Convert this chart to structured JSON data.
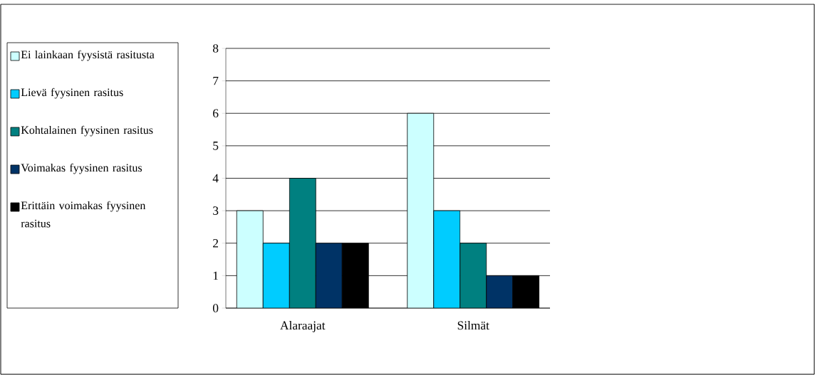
{
  "chart_data": {
    "type": "bar",
    "categories": [
      "Alaraajat",
      "Silmät"
    ],
    "series": [
      {
        "name": "Ei lainkaan fyysistä rasitusta",
        "color": "#ccffff",
        "values": [
          3,
          6
        ]
      },
      {
        "name": "Lievä fyysinen rasitus",
        "color": "#00ccff",
        "values": [
          2,
          3
        ]
      },
      {
        "name": "Kohtalainen fyysinen rasitus",
        "color": "#008080",
        "values": [
          4,
          2
        ]
      },
      {
        "name": "Voimakas fyysinen rasitus",
        "color": "#003366",
        "values": [
          2,
          1
        ]
      },
      {
        "name": "Erittäin voimakas fyysinen rasitus",
        "color": "#000000",
        "values": [
          2,
          1
        ]
      }
    ],
    "ylim": [
      0,
      8
    ],
    "yticks": [
      0,
      1,
      2,
      3,
      4,
      5,
      6,
      7,
      8
    ],
    "grid": "y",
    "legend": "left"
  }
}
